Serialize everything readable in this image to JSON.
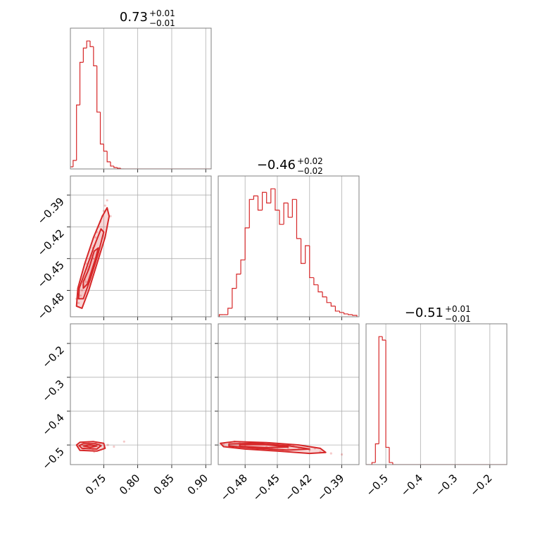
{
  "chart_data": [
    {
      "type": "histogram",
      "title": "0.73",
      "title_upper": "+0.01",
      "title_lower": "−0.01",
      "color": "#d62728",
      "bins": [
        0.7,
        0.705,
        0.71,
        0.715,
        0.72,
        0.725,
        0.73,
        0.735,
        0.74,
        0.745,
        0.75,
        0.755,
        0.76,
        0.765,
        0.77,
        0.775,
        0.78,
        0.785,
        0.79,
        0.795,
        0.8,
        0.805,
        0.81,
        0.815,
        0.82,
        0.825,
        0.83,
        0.835,
        0.84,
        0.845,
        0.85,
        0.855,
        0.86,
        0.865,
        0.87,
        0.875,
        0.88,
        0.885,
        0.89,
        0.895,
        0.9,
        0.905,
        0.91
      ],
      "counts": [
        3,
        12,
        90,
        150,
        170,
        180,
        172,
        145,
        80,
        35,
        25,
        10,
        4,
        2,
        1,
        0,
        0,
        0,
        0,
        0,
        0,
        0,
        0,
        0,
        0,
        0,
        0,
        0,
        0,
        0,
        0,
        0,
        0,
        0,
        0,
        0,
        0,
        0,
        0,
        0,
        0,
        0
      ]
    },
    {
      "type": "scatter",
      "color": "#d62728",
      "grid": true,
      "ylim": [
        -0.505,
        -0.372
      ],
      "yticks": [
        {
          "value": -0.39,
          "label": "−0.39"
        },
        {
          "value": -0.42,
          "label": "−0.42"
        },
        {
          "value": -0.45,
          "label": "−0.45"
        },
        {
          "value": -0.48,
          "label": "−0.48"
        }
      ],
      "x": [
        0.713,
        0.716,
        0.718,
        0.72,
        0.722,
        0.724,
        0.726,
        0.728,
        0.73,
        0.732,
        0.734,
        0.736,
        0.738,
        0.74,
        0.742,
        0.745,
        0.748,
        0.75,
        0.752,
        0.755,
        0.71,
        0.725,
        0.735,
        0.76
      ],
      "y": [
        -0.492,
        -0.485,
        -0.48,
        -0.475,
        -0.47,
        -0.472,
        -0.46,
        -0.458,
        -0.45,
        -0.447,
        -0.44,
        -0.438,
        -0.43,
        -0.425,
        -0.42,
        -0.415,
        -0.41,
        -0.405,
        -0.4,
        -0.395,
        -0.488,
        -0.455,
        -0.45,
        -0.41
      ],
      "contours": [
        {
          "x": [
            0.71,
            0.718,
            0.728,
            0.74,
            0.752,
            0.758,
            0.755,
            0.748,
            0.735,
            0.722,
            0.712
          ],
          "y": [
            -0.495,
            -0.497,
            -0.48,
            -0.455,
            -0.43,
            -0.41,
            -0.402,
            -0.41,
            -0.43,
            -0.455,
            -0.478
          ]
        },
        {
          "x": [
            0.713,
            0.72,
            0.73,
            0.742,
            0.75,
            0.746,
            0.735,
            0.724,
            0.714
          ],
          "y": [
            -0.488,
            -0.488,
            -0.47,
            -0.445,
            -0.425,
            -0.422,
            -0.44,
            -0.46,
            -0.478
          ]
        },
        {
          "x": [
            0.72,
            0.726,
            0.738,
            0.742,
            0.736,
            0.728,
            0.72
          ],
          "y": [
            -0.478,
            -0.474,
            -0.45,
            -0.44,
            -0.443,
            -0.46,
            -0.472
          ]
        }
      ]
    },
    {
      "type": "histogram",
      "title": "−0.46",
      "title_upper": "+0.02",
      "title_lower": "−0.02",
      "color": "#d62728",
      "bins": [
        -0.504,
        -0.5,
        -0.496,
        -0.492,
        -0.488,
        -0.484,
        -0.48,
        -0.476,
        -0.472,
        -0.468,
        -0.464,
        -0.46,
        -0.456,
        -0.452,
        -0.448,
        -0.444,
        -0.44,
        -0.436,
        -0.432,
        -0.428,
        -0.424,
        -0.42,
        -0.416,
        -0.412,
        -0.408,
        -0.404,
        -0.4,
        -0.396,
        -0.392,
        -0.388,
        -0.384,
        -0.38,
        -0.376
      ],
      "counts": [
        3,
        3,
        12,
        40,
        60,
        80,
        125,
        165,
        170,
        150,
        175,
        160,
        180,
        150,
        130,
        160,
        140,
        165,
        110,
        75,
        100,
        55,
        45,
        35,
        28,
        20,
        15,
        8,
        6,
        4,
        3,
        2
      ]
    },
    {
      "type": "scatter",
      "color": "#d62728",
      "grid": true,
      "xlim": [
        0.701,
        0.908
      ],
      "xticks": [
        0.75,
        {
          "value": 0.8,
          "label": "0.80"
        },
        0.85,
        {
          "value": 0.9,
          "label": "0.90"
        }
      ],
      "ylim": [
        -0.558,
        -0.142
      ],
      "yticks": [
        {
          "value": -0.2,
          "label": "−0.2"
        },
        {
          "value": -0.3,
          "label": "−0.3"
        },
        {
          "value": -0.4,
          "label": "−0.4"
        },
        {
          "value": -0.5,
          "label": "−0.5"
        }
      ],
      "x": [
        0.712,
        0.718,
        0.722,
        0.726,
        0.73,
        0.734,
        0.738,
        0.742,
        0.746,
        0.75,
        0.756,
        0.72,
        0.728,
        0.736,
        0.744,
        0.765,
        0.78
      ],
      "y": [
        -0.505,
        -0.5,
        -0.51,
        -0.498,
        -0.505,
        -0.512,
        -0.5,
        -0.508,
        -0.503,
        -0.51,
        -0.5,
        -0.515,
        -0.495,
        -0.52,
        -0.497,
        -0.505,
        -0.49
      ],
      "contours": [
        {
          "x": [
            0.71,
            0.715,
            0.735,
            0.75,
            0.752,
            0.74,
            0.715
          ],
          "y": [
            -0.5,
            -0.492,
            -0.49,
            -0.495,
            -0.51,
            -0.518,
            -0.516
          ]
        },
        {
          "x": [
            0.714,
            0.72,
            0.738,
            0.746,
            0.74,
            0.718
          ],
          "y": [
            -0.502,
            -0.496,
            -0.496,
            -0.502,
            -0.512,
            -0.51
          ]
        },
        {
          "x": [
            0.72,
            0.73,
            0.74,
            0.73
          ],
          "y": [
            -0.503,
            -0.5,
            -0.503,
            -0.507
          ]
        }
      ]
    },
    {
      "type": "scatter",
      "color": "#d62728",
      "grid": true,
      "xlim": [
        -0.505,
        -0.374
      ],
      "xticks": [
        {
          "value": -0.48,
          "label": "−0.48"
        },
        {
          "value": -0.45,
          "label": "−0.45"
        },
        {
          "value": -0.42,
          "label": "−0.42"
        },
        {
          "value": -0.39,
          "label": "−0.39"
        }
      ],
      "x": [
        -0.5,
        -0.49,
        -0.48,
        -0.47,
        -0.46,
        -0.45,
        -0.44,
        -0.43,
        -0.42,
        -0.41,
        -0.4,
        -0.495,
        -0.475,
        -0.455,
        -0.435,
        -0.415,
        -0.39,
        -0.485,
        -0.445
      ],
      "y": [
        -0.498,
        -0.49,
        -0.5,
        -0.495,
        -0.505,
        -0.5,
        -0.51,
        -0.508,
        -0.515,
        -0.52,
        -0.525,
        -0.505,
        -0.508,
        -0.512,
        -0.5,
        -0.51,
        -0.528,
        -0.495,
        -0.515
      ],
      "contours": [
        {
          "x": [
            -0.503,
            -0.49,
            -0.46,
            -0.43,
            -0.41,
            -0.405,
            -0.42,
            -0.45,
            -0.48,
            -0.5
          ],
          "y": [
            -0.495,
            -0.49,
            -0.493,
            -0.5,
            -0.51,
            -0.522,
            -0.525,
            -0.518,
            -0.512,
            -0.505
          ]
        },
        {
          "x": [
            -0.495,
            -0.47,
            -0.44,
            -0.42,
            -0.44,
            -0.47,
            -0.495
          ],
          "y": [
            -0.497,
            -0.495,
            -0.502,
            -0.512,
            -0.515,
            -0.51,
            -0.503
          ]
        },
        {
          "x": [
            -0.485,
            -0.46,
            -0.44,
            -0.46,
            -0.485
          ],
          "y": [
            -0.499,
            -0.499,
            -0.506,
            -0.508,
            -0.504
          ]
        }
      ]
    },
    {
      "type": "histogram",
      "title": "−0.51",
      "title_upper": "+0.01",
      "title_lower": "−0.01",
      "color": "#d62728",
      "grid": true,
      "xlim": [
        -0.557,
        -0.151
      ],
      "xticks": [
        {
          "value": -0.5,
          "label": "−0.5"
        },
        {
          "value": -0.4,
          "label": "−0.4"
        },
        {
          "value": -0.3,
          "label": "−0.3"
        },
        {
          "value": -0.2,
          "label": "−0.2"
        }
      ],
      "bins": [
        -0.56,
        -0.55,
        -0.54,
        -0.53,
        -0.52,
        -0.51,
        -0.5,
        -0.49,
        -0.48,
        -0.47,
        -0.46,
        -0.45,
        -0.44,
        -0.43,
        -0.42,
        -0.41,
        -0.4,
        -0.39,
        -0.38,
        -0.37,
        -0.36,
        -0.35,
        -0.34,
        -0.33,
        -0.32,
        -0.31,
        -0.3,
        -0.29,
        -0.28,
        -0.27,
        -0.26,
        -0.25,
        -0.24,
        -0.23,
        -0.22,
        -0.21,
        -0.2,
        -0.19,
        -0.18,
        -0.17,
        -0.16,
        -0.15
      ],
      "counts": [
        0,
        0,
        3,
        30,
        185,
        180,
        25,
        3,
        0,
        0,
        0,
        0,
        0,
        0,
        0,
        0,
        0,
        0,
        0,
        0,
        0,
        0,
        0,
        0,
        0,
        0,
        0,
        0,
        0,
        0,
        0,
        0,
        0,
        0,
        0,
        0,
        0,
        0,
        0,
        0,
        0
      ]
    }
  ]
}
